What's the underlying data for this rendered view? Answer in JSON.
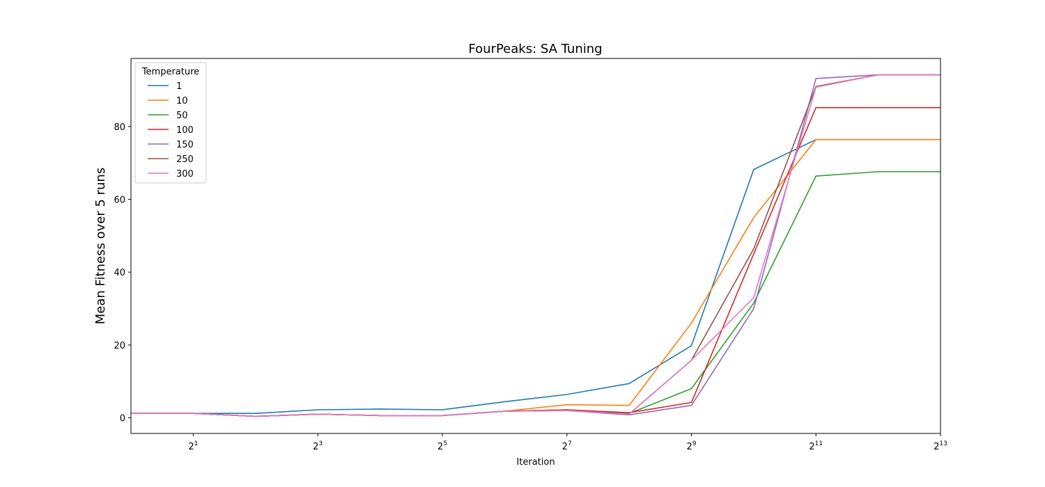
{
  "chart_data": {
    "type": "line",
    "title": "FourPeaks: SA Tuning",
    "xlabel": "Iteration",
    "ylabel": "Mean Fitness over 5 runs",
    "x_scale": "log2",
    "x": [
      1,
      2,
      4,
      8,
      16,
      32,
      64,
      128,
      256,
      512,
      1024,
      2048,
      4096,
      8192
    ],
    "xlim": [
      1,
      8192
    ],
    "ylim": [
      -4.3,
      98.7
    ],
    "x_ticks": [
      {
        "value": 2,
        "base": "2",
        "exp": "1"
      },
      {
        "value": 8,
        "base": "2",
        "exp": "3"
      },
      {
        "value": 32,
        "base": "2",
        "exp": "5"
      },
      {
        "value": 128,
        "base": "2",
        "exp": "7"
      },
      {
        "value": 512,
        "base": "2",
        "exp": "9"
      },
      {
        "value": 2048,
        "base": "2",
        "exp": "11"
      },
      {
        "value": 8192,
        "base": "2",
        "exp": "13"
      }
    ],
    "y_ticks": [
      0,
      20,
      40,
      60,
      80
    ],
    "grid": false,
    "legend": {
      "title": "Temperature",
      "location": "top-left"
    },
    "series": [
      {
        "name": "1",
        "color": "#1f77b4",
        "values": [
          1.2,
          1.2,
          1.2,
          2.2,
          2.4,
          2.2,
          4.4,
          6.4,
          9.4,
          19.8,
          68.2,
          76.4,
          76.4,
          76.4
        ]
      },
      {
        "name": "10",
        "color": "#ff7f0e",
        "values": [
          1.2,
          1.2,
          0.4,
          1.0,
          0.6,
          0.6,
          1.8,
          3.6,
          3.4,
          26.0,
          55.0,
          76.4,
          76.4,
          76.4
        ]
      },
      {
        "name": "50",
        "color": "#2ca02c",
        "values": [
          1.2,
          1.2,
          0.4,
          1.0,
          0.6,
          0.6,
          1.8,
          2.2,
          1.2,
          8.0,
          31.5,
          66.4,
          67.6,
          67.6
        ]
      },
      {
        "name": "100",
        "color": "#d62728",
        "values": [
          1.2,
          1.2,
          0.4,
          1.0,
          0.6,
          0.6,
          1.8,
          2.2,
          1.4,
          4.2,
          45.0,
          85.2,
          85.2,
          85.2
        ]
      },
      {
        "name": "150",
        "color": "#9467bd",
        "values": [
          1.2,
          1.2,
          0.4,
          1.0,
          0.6,
          0.6,
          1.8,
          2.0,
          0.8,
          3.4,
          30.0,
          93.2,
          94.2,
          94.2
        ]
      },
      {
        "name": "250",
        "color": "#8c564b",
        "values": [
          1.2,
          1.2,
          0.4,
          1.0,
          0.6,
          0.6,
          1.8,
          2.0,
          1.0,
          15.8,
          46.4,
          91.0,
          94.2,
          94.2
        ]
      },
      {
        "name": "300",
        "color": "#e377c2",
        "values": [
          1.2,
          1.2,
          0.4,
          1.0,
          0.6,
          0.6,
          1.8,
          2.0,
          1.0,
          15.8,
          33.0,
          90.8,
          94.2,
          94.2
        ]
      }
    ]
  }
}
